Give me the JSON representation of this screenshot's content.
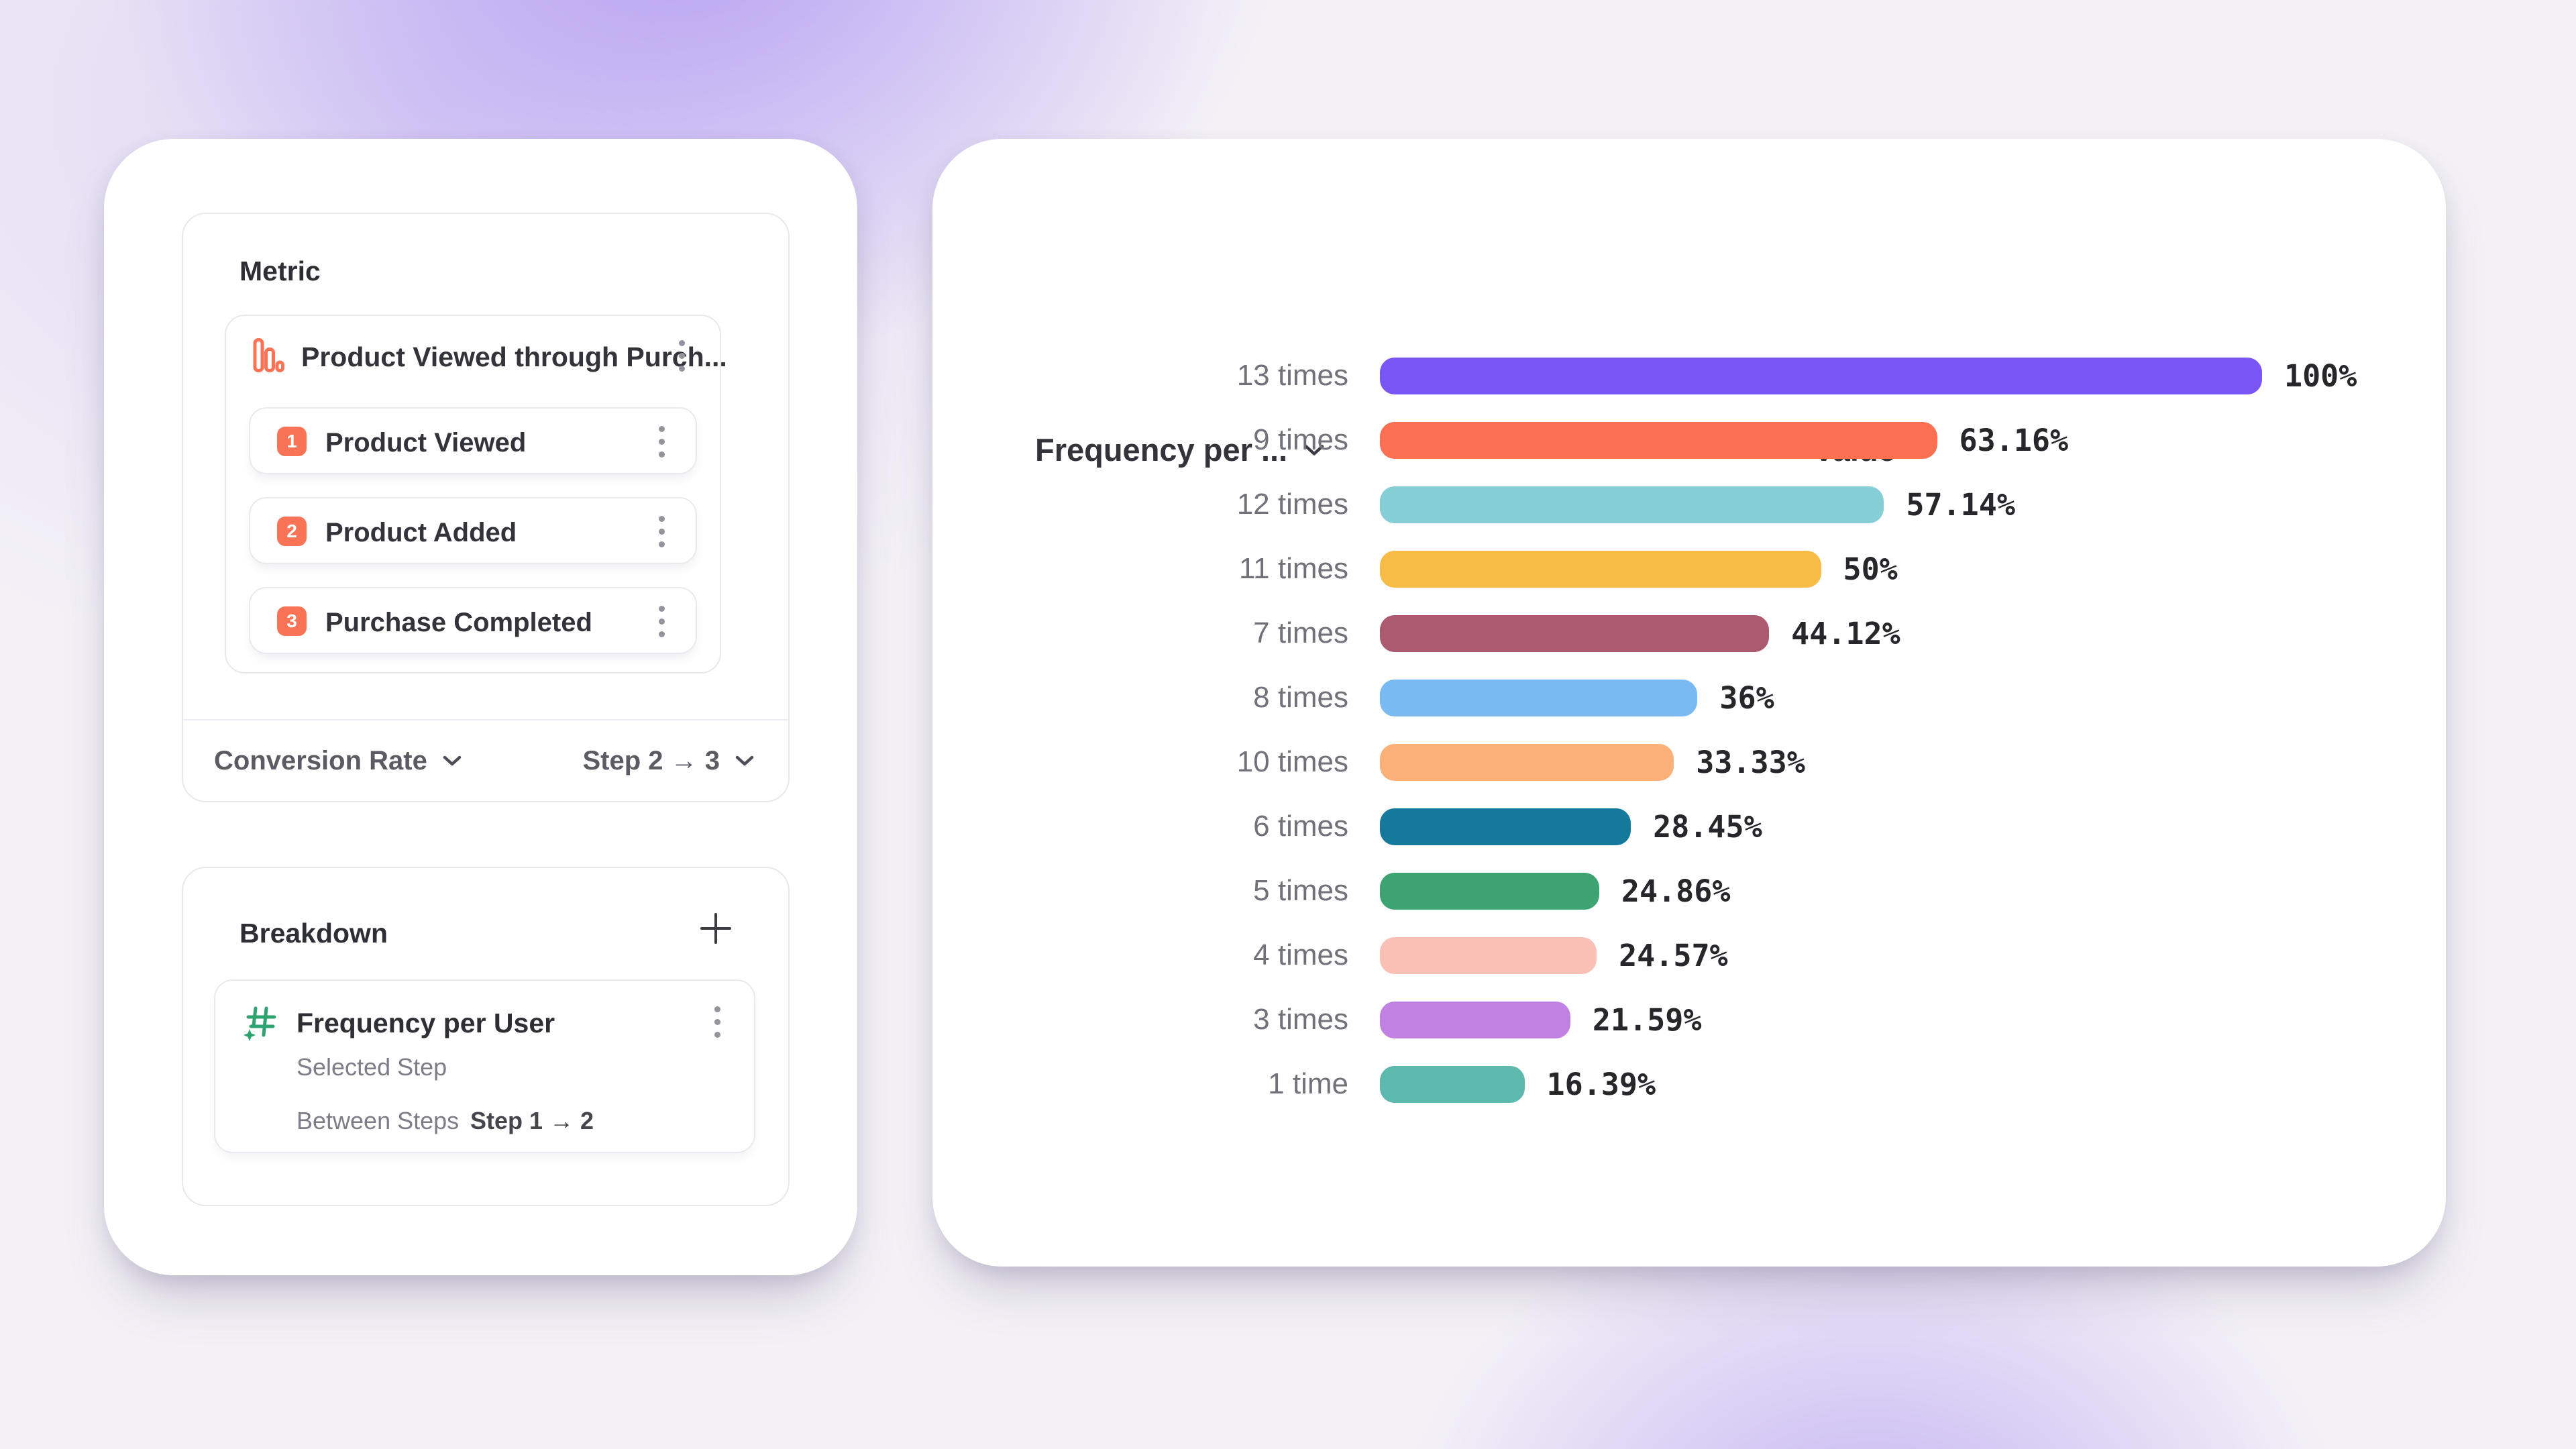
{
  "colors": {
    "accent_coral": "#f97357",
    "hash_green": "#2ea36f",
    "card_background": "#ffffff",
    "panel_border": "#e9e8ed",
    "text_dark": "#33333a",
    "text_gray": "#71717a"
  },
  "left_panel": {
    "metric": {
      "title": "Metric",
      "event": {
        "name": "Product Viewed through Purch...",
        "icon": "funnel-bars-icon"
      },
      "steps": [
        {
          "num": "1",
          "label": "Product Viewed"
        },
        {
          "num": "2",
          "label": "Product Added"
        },
        {
          "num": "3",
          "label": "Purchase Completed"
        }
      ],
      "footer": {
        "measure": "Conversion Rate",
        "step_range": "Step 2 → 3"
      }
    },
    "breakdown": {
      "title": "Breakdown",
      "property": {
        "name": "Frequency per User",
        "detail_rows": [
          {
            "label": "Selected Step",
            "value": ""
          },
          {
            "label": "Between Steps",
            "value": "Step 1 → 2"
          }
        ]
      }
    }
  },
  "chart": {
    "left_header": "Frequency per ...",
    "right_header": "Value"
  },
  "chart_data": {
    "type": "bar",
    "orientation": "horizontal",
    "categories": [
      "13 times",
      "9 times",
      "12 times",
      "11 times",
      "7 times",
      "8 times",
      "10 times",
      "6 times",
      "5 times",
      "4 times",
      "3 times",
      "1 time"
    ],
    "values": [
      100,
      63.16,
      57.14,
      50,
      44.12,
      36,
      33.33,
      28.45,
      24.86,
      24.57,
      21.59,
      16.39
    ],
    "value_labels": [
      "100%",
      "63.16%",
      "57.14%",
      "50%",
      "44.12%",
      "36%",
      "33.33%",
      "28.45%",
      "24.86%",
      "24.57%",
      "21.59%",
      "16.39%"
    ],
    "bar_colors": [
      "#7a55f5",
      "#fb7053",
      "#85ced6",
      "#f6bc45",
      "#ab5a70",
      "#78baf1",
      "#fbb077",
      "#15799b",
      "#3da471",
      "#fbc0b5",
      "#c181e2",
      "#5db8ad"
    ],
    "xlim": [
      0,
      100
    ],
    "grid": false,
    "legend": "none",
    "column_headers": [
      "Frequency per ...",
      "Value"
    ]
  }
}
